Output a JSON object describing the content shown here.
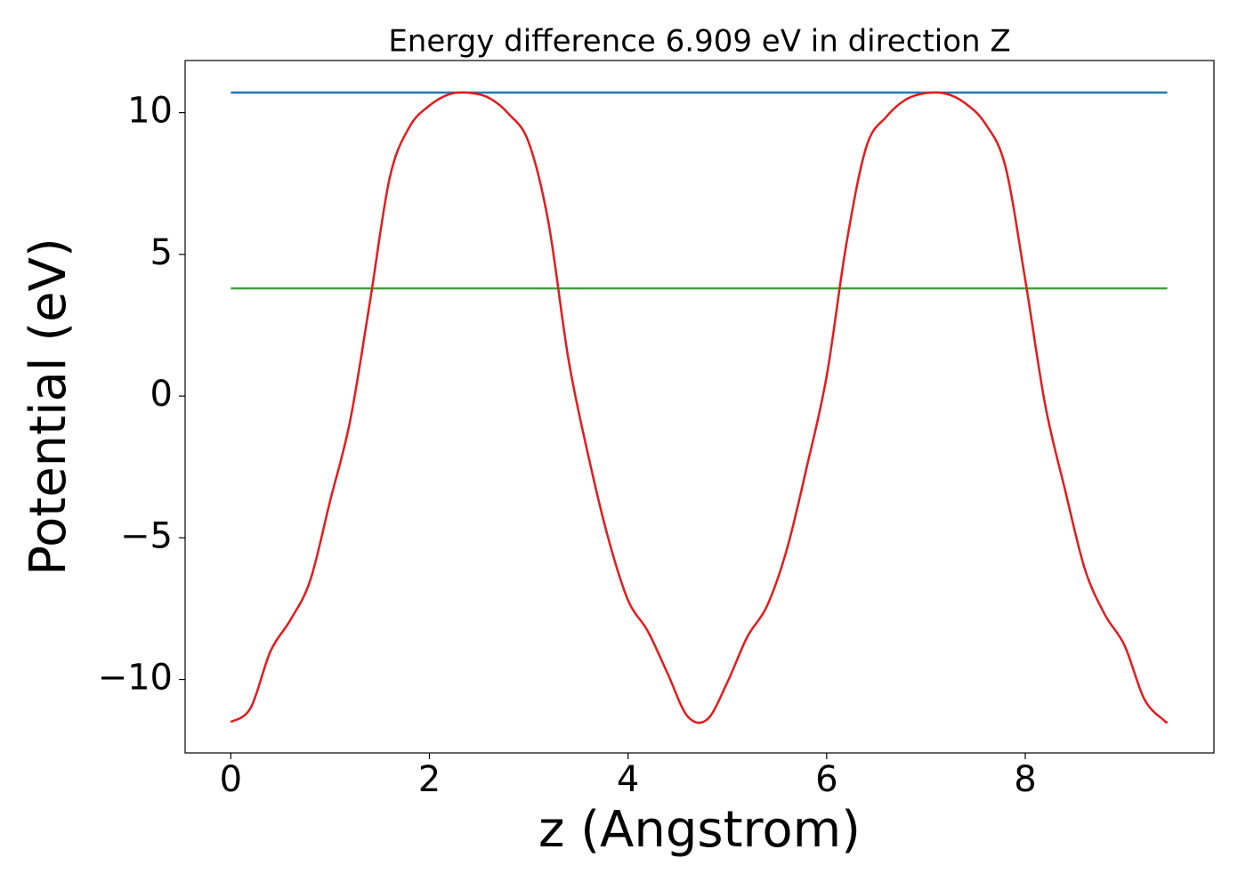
{
  "chart_data": {
    "type": "line",
    "title": "Energy difference 6.909 eV in direction Z",
    "x_label": "z (Angstrom)",
    "y_label": "Potential (eV)",
    "xlim": [
      -0.46,
      9.9
    ],
    "ylim": [
      -12.59,
      11.84
    ],
    "xticks": [
      0,
      2,
      4,
      6,
      8
    ],
    "yticks": [
      {
        "value": -10,
        "label": "−10"
      },
      {
        "value": -5,
        "label": "−5"
      },
      0,
      5,
      10
    ],
    "grid": false,
    "series": [
      {
        "color": "#1f77b4",
        "x": [
          0,
          9.43
        ],
        "values": [
          10.709,
          10.709
        ]
      },
      {
        "color": "#3fa33f",
        "x": [
          0,
          9.43
        ],
        "values": [
          3.8,
          3.8
        ]
      },
      {
        "color": "#e41a1c",
        "x": [
          0,
          0.2,
          0.4,
          0.6,
          0.8,
          1.0,
          1.2,
          1.4,
          1.6,
          1.8,
          2.0,
          2.2,
          2.4,
          2.6,
          2.8,
          3.0,
          3.2,
          3.4,
          3.6,
          3.8,
          4.0,
          4.2,
          4.4,
          4.6,
          4.8,
          5.0,
          5.2,
          5.4,
          5.6,
          5.8,
          6.0,
          6.2,
          6.4,
          6.6,
          6.8,
          7.0,
          7.2,
          7.4,
          7.6,
          7.8,
          8.0,
          8.2,
          8.4,
          8.6,
          8.8,
          9.0,
          9.2,
          9.4,
          9.43
        ],
        "values": [
          -11.5,
          -11.0,
          -9.0,
          -7.9,
          -6.5,
          -3.7,
          -0.9,
          3.3,
          7.7,
          9.5,
          10.25,
          10.65,
          10.7,
          10.52,
          9.95,
          8.95,
          6.1,
          1.3,
          -2.1,
          -5.0,
          -7.2,
          -8.3,
          -9.8,
          -11.3,
          -11.4,
          -10.1,
          -8.5,
          -7.4,
          -5.4,
          -2.5,
          0.7,
          5.4,
          8.8,
          9.85,
          10.47,
          10.69,
          10.67,
          10.32,
          9.6,
          8.1,
          4.1,
          -0.3,
          -3.3,
          -6.1,
          -7.7,
          -8.8,
          -10.7,
          -11.45,
          -11.5
        ]
      }
    ]
  }
}
